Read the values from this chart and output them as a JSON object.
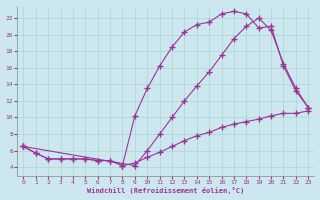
{
  "xlabel": "Windchill (Refroidissement éolien,°C)",
  "bg_color": "#cce8ee",
  "grid_color": "#aad4d8",
  "line_color": "#993399",
  "xlim": [
    -0.5,
    23.5
  ],
  "ylim": [
    3,
    23.5
  ],
  "xticks": [
    0,
    1,
    2,
    3,
    4,
    5,
    6,
    7,
    8,
    9,
    10,
    11,
    12,
    13,
    14,
    15,
    16,
    17,
    18,
    19,
    20,
    21,
    22,
    23
  ],
  "yticks": [
    4,
    6,
    8,
    10,
    12,
    14,
    16,
    18,
    20,
    22
  ],
  "line1_x": [
    0,
    1,
    2,
    3,
    4,
    5,
    6,
    7,
    8,
    9,
    10,
    11,
    12,
    13,
    14,
    15,
    16,
    17,
    18,
    19,
    20,
    21,
    22,
    23
  ],
  "line1_y": [
    6.5,
    5.7,
    5.0,
    5.0,
    5.0,
    5.0,
    4.8,
    4.8,
    4.2,
    4.5,
    5.2,
    5.8,
    6.5,
    7.2,
    7.8,
    8.2,
    8.8,
    9.2,
    9.5,
    9.8,
    10.2,
    10.5,
    10.5,
    10.8
  ],
  "line2_x": [
    0,
    1,
    2,
    3,
    4,
    5,
    6,
    7,
    8,
    9,
    10,
    11,
    12,
    13,
    14,
    15,
    16,
    17,
    18,
    19,
    20,
    21,
    22,
    23
  ],
  "line2_y": [
    6.5,
    5.7,
    5.0,
    5.0,
    5.0,
    5.0,
    4.8,
    4.8,
    4.2,
    10.2,
    13.5,
    16.2,
    18.5,
    20.3,
    21.2,
    21.5,
    22.5,
    22.8,
    22.5,
    20.8,
    21.0,
    16.2,
    13.2,
    11.2
  ],
  "line3_x": [
    0,
    9,
    10,
    11,
    12,
    13,
    14,
    15,
    16,
    17,
    18,
    19,
    20,
    21,
    22,
    23
  ],
  "line3_y": [
    6.5,
    4.2,
    6.0,
    8.0,
    10.0,
    12.0,
    13.8,
    15.5,
    17.5,
    19.5,
    21.0,
    22.0,
    20.5,
    16.5,
    13.5,
    11.2
  ]
}
